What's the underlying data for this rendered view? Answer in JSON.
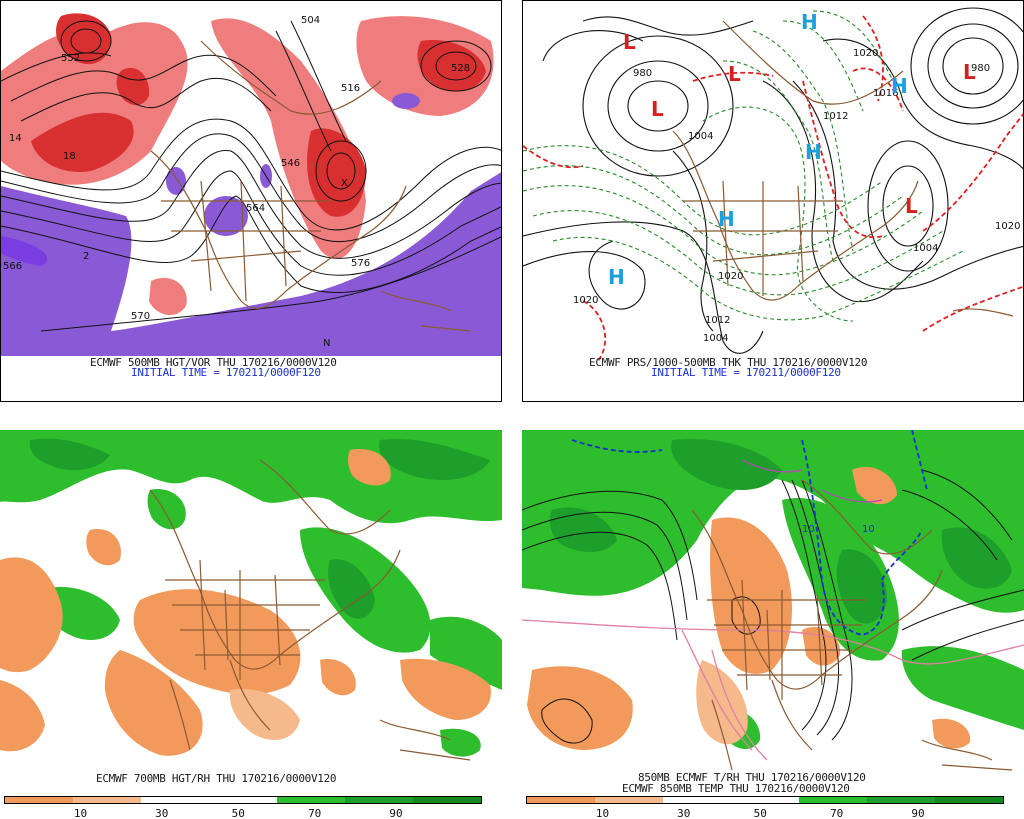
{
  "panels": {
    "p1": {
      "caption": "ECMWF 500MB HGT/VOR THU 170216/0000V120",
      "initial": "INITIAL TIME = 170211/0000F120",
      "labels": [
        "504",
        "528",
        "516",
        "546",
        "570",
        "576",
        "552",
        "564",
        "566",
        "2",
        "14",
        "18",
        "N",
        "X"
      ]
    },
    "p2": {
      "caption": "ECMWF PRS/1000-500MB THK THU 170216/0000V120",
      "initial": "INITIAL TIME = 170211/0000F120",
      "labels": [
        "980",
        "1004",
        "1012",
        "1020",
        "1020",
        "1012",
        "1004",
        "980",
        "1020",
        "1016",
        "1004",
        "1020"
      ],
      "centers": [
        {
          "type": "L",
          "color": "#d42020"
        },
        {
          "type": "L",
          "color": "#d42020"
        },
        {
          "type": "L",
          "color": "#d42020"
        },
        {
          "type": "L",
          "color": "#d42020"
        },
        {
          "type": "L",
          "color": "#d42020"
        },
        {
          "type": "H",
          "color": "#1aa0e0"
        },
        {
          "type": "H",
          "color": "#1aa0e0"
        },
        {
          "type": "H",
          "color": "#1aa0e0"
        },
        {
          "type": "H",
          "color": "#1aa0e0"
        },
        {
          "type": "H",
          "color": "#1aa0e0"
        }
      ]
    },
    "p3": {
      "caption": "ECMWF 700MB HGT/RH THU 170216/0000V120",
      "colorbar": {
        "colors": [
          "#f29a5c",
          "#f5b98c",
          "#ffffff",
          "#ffffff",
          "#2dbd2d",
          "#1e9e2a",
          "#118a20"
        ],
        "ticks": [
          "10",
          "30",
          "50",
          "70",
          "90"
        ]
      }
    },
    "p4": {
      "caption": "850MB ECMWF T/RH THU 170216/0000V120",
      "caption2": "ECMWF 850MB TEMP THU 170216/0000V120",
      "labels": [
        "10",
        "10"
      ],
      "colorbar": {
        "colors": [
          "#f29a5c",
          "#f5b98c",
          "#ffffff",
          "#ffffff",
          "#2dbd2d",
          "#1e9e2a",
          "#118a20"
        ],
        "ticks": [
          "10",
          "30",
          "50",
          "70",
          "90"
        ]
      }
    }
  },
  "colors": {
    "vorticity_high": "#d83030",
    "vorticity_low": "#ef7d7d",
    "vorticity_negative": "#8a5ad6",
    "contour": "#111111",
    "thickness_cold": "#2a8a2a",
    "thickness_warm": "#e02020",
    "rh_dry": "#f29a5c",
    "rh_moist": "#2dbd2d",
    "rh_very_moist": "#118a20",
    "borders": "#8b5a32",
    "temp_zero": "#1a2fd0",
    "temp_warm": "#e080a0",
    "temp_cold": "#c040c0"
  }
}
